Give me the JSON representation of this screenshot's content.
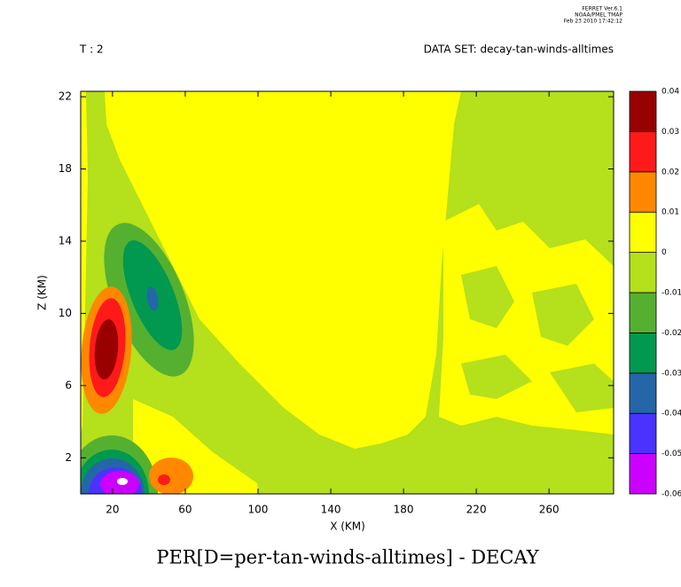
{
  "chart_data": {
    "type": "contour",
    "title": "PER[D=per-tan-winds-alltimes] - DECAY",
    "subtitle_left": "T : 2",
    "subtitle_right": "DATA SET: decay-tan-winds-alltimes",
    "stamp": [
      "FERRET  Ver.6.1",
      "NOAA/PMEL TMAP",
      "Feb 23 2010 17:42:12"
    ],
    "xlabel": "X (KM)",
    "ylabel": "Z (KM)",
    "xlim": [
      2.5,
      295.5
    ],
    "xticks": [
      20,
      60,
      100,
      140,
      180,
      220,
      260
    ],
    "ylim": [
      0,
      22.3
    ],
    "yticks": [
      2,
      6,
      10,
      14,
      18,
      22
    ],
    "levels": [
      -0.06,
      -0.05,
      -0.04,
      -0.03,
      -0.02,
      -0.01,
      0,
      0.01,
      0.02,
      0.03,
      0.04
    ],
    "colors": [
      "#cc00ff",
      "#4a33ff",
      "#2466a8",
      "#00994f",
      "#55b030",
      "#b4e01c",
      "#ffff00",
      "#ff8800",
      "#ff1a1a",
      "#990000"
    ]
  }
}
